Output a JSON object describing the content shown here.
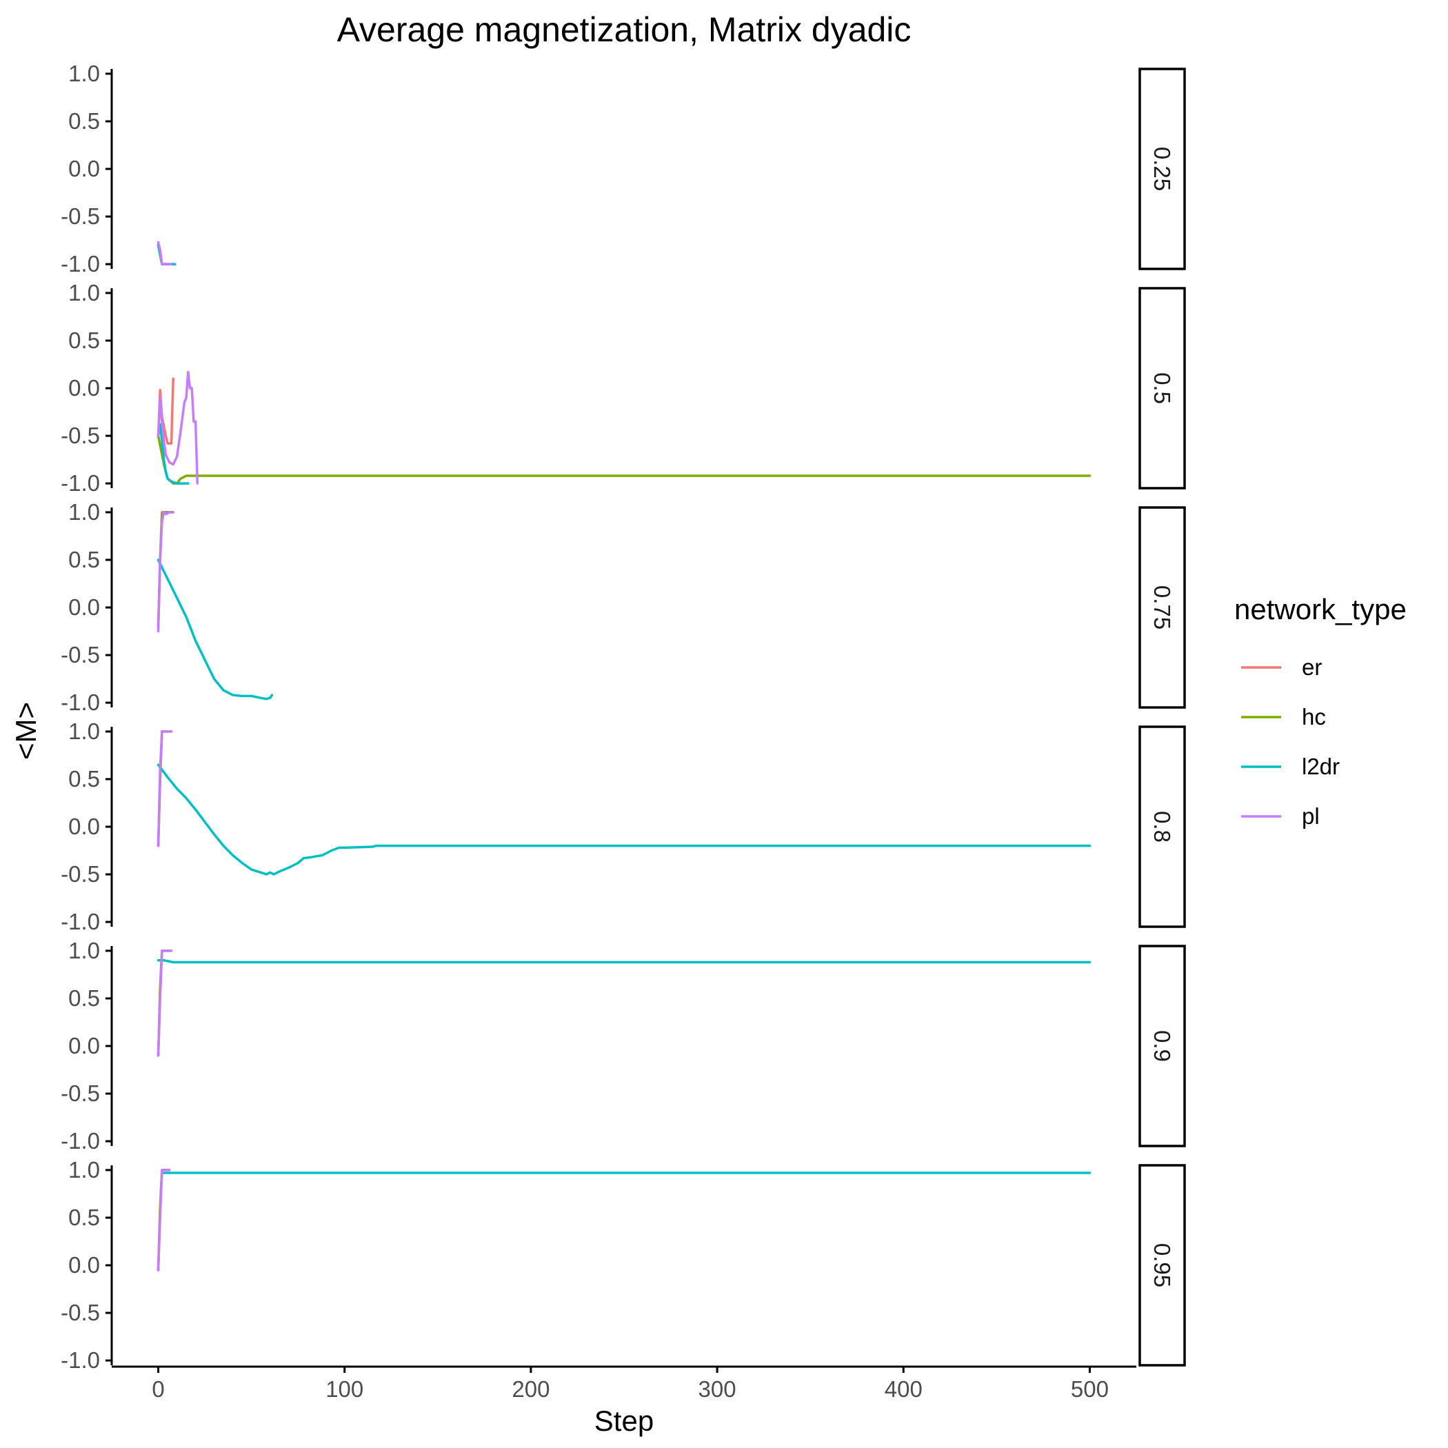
{
  "chart_data": {
    "type": "line",
    "title": "Average magnetization, Matrix dyadic",
    "xlabel": "Step",
    "ylabel": "<M>",
    "xlim": [
      -25,
      525
    ],
    "ylim": [
      -1.05,
      1.05
    ],
    "x_ticks": [
      0,
      100,
      200,
      300,
      400,
      500
    ],
    "y_ticks": [
      1.0,
      0.5,
      0.0,
      -0.5,
      -1.0
    ],
    "y_tick_labels": [
      "1.0",
      "0.5",
      "0.0",
      "-0.5",
      "-1.0"
    ],
    "grid": false,
    "legend": {
      "title": "network_type",
      "position": "right",
      "entries": [
        {
          "name": "er",
          "color": "#F8766D"
        },
        {
          "name": "hc",
          "color": "#7CAE00"
        },
        {
          "name": "l2dr",
          "color": "#00BFC4"
        },
        {
          "name": "pl",
          "color": "#C77CFF"
        }
      ]
    },
    "facets": [
      {
        "label": "0.25",
        "series": [
          {
            "name": "er",
            "points": [
              [
                0,
                -0.8
              ],
              [
                2,
                -1.0
              ],
              [
                8,
                -1.0
              ]
            ]
          },
          {
            "name": "hc",
            "points": [
              [
                0,
                -0.8
              ],
              [
                2,
                -1.0
              ],
              [
                6,
                -1.0
              ]
            ]
          },
          {
            "name": "l2dr",
            "points": [
              [
                0,
                -0.8
              ],
              [
                2,
                -1.0
              ],
              [
                9,
                -1.0
              ]
            ]
          },
          {
            "name": "pl",
            "points": [
              [
                0,
                -0.77
              ],
              [
                1,
                -0.85
              ],
              [
                2,
                -1.0
              ],
              [
                7,
                -1.0
              ]
            ]
          }
        ]
      },
      {
        "label": "0.5",
        "series": [
          {
            "name": "er",
            "points": [
              [
                0,
                -0.5
              ],
              [
                1,
                -0.02
              ],
              [
                2,
                -0.3
              ],
              [
                4,
                -0.5
              ],
              [
                5,
                -0.58
              ],
              [
                7,
                -0.58
              ],
              [
                8,
                0.1
              ]
            ]
          },
          {
            "name": "hc",
            "points": [
              [
                0,
                -0.5
              ],
              [
                3,
                -0.8
              ],
              [
                5,
                -0.95
              ],
              [
                8,
                -1.0
              ],
              [
                10,
                -1.0
              ],
              [
                12,
                -0.95
              ],
              [
                15,
                -0.92
              ],
              [
                40,
                -0.92
              ],
              [
                100,
                -0.92
              ],
              [
                200,
                -0.92
              ],
              [
                300,
                -0.92
              ],
              [
                400,
                -0.92
              ],
              [
                500,
                -0.92
              ]
            ]
          },
          {
            "name": "l2dr",
            "points": [
              [
                0,
                -0.5
              ],
              [
                1,
                -0.38
              ],
              [
                2,
                -0.55
              ],
              [
                3,
                -0.75
              ],
              [
                4,
                -0.88
              ],
              [
                5,
                -0.95
              ],
              [
                7,
                -0.98
              ],
              [
                10,
                -1.0
              ],
              [
                16,
                -1.0
              ]
            ]
          },
          {
            "name": "pl",
            "points": [
              [
                0,
                -0.5
              ],
              [
                1,
                -0.1
              ],
              [
                2,
                -0.35
              ],
              [
                3,
                -0.55
              ],
              [
                4,
                -0.7
              ],
              [
                6,
                -0.78
              ],
              [
                8,
                -0.8
              ],
              [
                10,
                -0.72
              ],
              [
                12,
                -0.45
              ],
              [
                14,
                -0.15
              ],
              [
                15,
                -0.1
              ],
              [
                16,
                0.17
              ],
              [
                17,
                0.0
              ],
              [
                18,
                0.0
              ],
              [
                19,
                -0.35
              ],
              [
                20,
                -0.35
              ],
              [
                21,
                -1.0
              ]
            ]
          }
        ]
      },
      {
        "label": "0.75",
        "series": [
          {
            "name": "er",
            "points": [
              [
                0,
                -0.2
              ],
              [
                1,
                0.5
              ],
              [
                2,
                1.0
              ],
              [
                8,
                1.0
              ]
            ]
          },
          {
            "name": "hc",
            "points": [
              [
                0,
                -0.2
              ],
              [
                1,
                0.5
              ],
              [
                2,
                0.98
              ],
              [
                3,
                1.0
              ],
              [
                8,
                1.0
              ]
            ]
          },
          {
            "name": "l2dr",
            "points": [
              [
                0,
                0.5
              ],
              [
                5,
                0.3
              ],
              [
                10,
                0.1
              ],
              [
                15,
                -0.1
              ],
              [
                20,
                -0.35
              ],
              [
                25,
                -0.55
              ],
              [
                30,
                -0.75
              ],
              [
                35,
                -0.87
              ],
              [
                40,
                -0.92
              ],
              [
                45,
                -0.93
              ],
              [
                50,
                -0.93
              ],
              [
                55,
                -0.95
              ],
              [
                58,
                -0.96
              ],
              [
                60,
                -0.95
              ],
              [
                61,
                -0.92
              ]
            ]
          },
          {
            "name": "pl",
            "points": [
              [
                0,
                -0.25
              ],
              [
                1,
                0.5
              ],
              [
                2,
                0.9
              ],
              [
                3,
                1.0
              ],
              [
                4,
                0.98
              ],
              [
                6,
                1.0
              ],
              [
                8,
                1.0
              ]
            ]
          }
        ]
      },
      {
        "label": "0.8",
        "series": [
          {
            "name": "er",
            "points": [
              [
                0,
                -0.2
              ],
              [
                1,
                0.5
              ],
              [
                2,
                1.0
              ],
              [
                6,
                1.0
              ]
            ]
          },
          {
            "name": "hc",
            "points": [
              [
                0,
                -0.2
              ],
              [
                1,
                0.5
              ],
              [
                2,
                1.0
              ],
              [
                7,
                1.0
              ]
            ]
          },
          {
            "name": "l2dr",
            "points": [
              [
                0,
                0.65
              ],
              [
                5,
                0.52
              ],
              [
                10,
                0.4
              ],
              [
                15,
                0.3
              ],
              [
                20,
                0.18
              ],
              [
                25,
                0.05
              ],
              [
                30,
                -0.08
              ],
              [
                35,
                -0.2
              ],
              [
                40,
                -0.3
              ],
              [
                45,
                -0.38
              ],
              [
                50,
                -0.45
              ],
              [
                55,
                -0.48
              ],
              [
                58,
                -0.5
              ],
              [
                60,
                -0.48
              ],
              [
                62,
                -0.5
              ],
              [
                65,
                -0.47
              ],
              [
                70,
                -0.43
              ],
              [
                75,
                -0.38
              ],
              [
                78,
                -0.33
              ],
              [
                82,
                -0.32
              ],
              [
                88,
                -0.3
              ],
              [
                93,
                -0.25
              ],
              [
                97,
                -0.22
              ],
              [
                100,
                -0.22
              ],
              [
                115,
                -0.21
              ],
              [
                117,
                -0.2
              ],
              [
                150,
                -0.2
              ],
              [
                200,
                -0.2
              ],
              [
                300,
                -0.2
              ],
              [
                400,
                -0.2
              ],
              [
                500,
                -0.2
              ]
            ]
          },
          {
            "name": "pl",
            "points": [
              [
                0,
                -0.2
              ],
              [
                1,
                0.6
              ],
              [
                2,
                1.0
              ],
              [
                7,
                1.0
              ]
            ]
          }
        ]
      },
      {
        "label": "0.9",
        "series": [
          {
            "name": "er",
            "points": [
              [
                0,
                -0.1
              ],
              [
                1,
                0.6
              ],
              [
                2,
                1.0
              ],
              [
                6,
                1.0
              ]
            ]
          },
          {
            "name": "hc",
            "points": [
              [
                0,
                -0.1
              ],
              [
                1,
                0.6
              ],
              [
                2,
                1.0
              ],
              [
                6,
                1.0
              ]
            ]
          },
          {
            "name": "l2dr",
            "points": [
              [
                0,
                0.9
              ],
              [
                3,
                0.9
              ],
              [
                8,
                0.88
              ],
              [
                20,
                0.88
              ],
              [
                100,
                0.88
              ],
              [
                200,
                0.88
              ],
              [
                300,
                0.88
              ],
              [
                400,
                0.88
              ],
              [
                500,
                0.88
              ]
            ]
          },
          {
            "name": "pl",
            "points": [
              [
                0,
                -0.1
              ],
              [
                1,
                0.5
              ],
              [
                2,
                1.0
              ],
              [
                7,
                1.0
              ]
            ]
          }
        ]
      },
      {
        "label": "0.95",
        "series": [
          {
            "name": "er",
            "points": [
              [
                0,
                -0.05
              ],
              [
                1,
                0.6
              ],
              [
                2,
                1.0
              ],
              [
                6,
                1.0
              ]
            ]
          },
          {
            "name": "hc",
            "points": [
              [
                0,
                -0.05
              ],
              [
                1,
                0.6
              ],
              [
                2,
                1.0
              ],
              [
                6,
                1.0
              ]
            ]
          },
          {
            "name": "l2dr",
            "points": [
              [
                2,
                0.97
              ],
              [
                20,
                0.97
              ],
              [
                100,
                0.97
              ],
              [
                200,
                0.97
              ],
              [
                300,
                0.97
              ],
              [
                400,
                0.97
              ],
              [
                500,
                0.97
              ]
            ]
          },
          {
            "name": "pl",
            "points": [
              [
                0,
                -0.05
              ],
              [
                1,
                0.5
              ],
              [
                2,
                1.0
              ],
              [
                6,
                1.0
              ]
            ]
          }
        ]
      }
    ]
  }
}
